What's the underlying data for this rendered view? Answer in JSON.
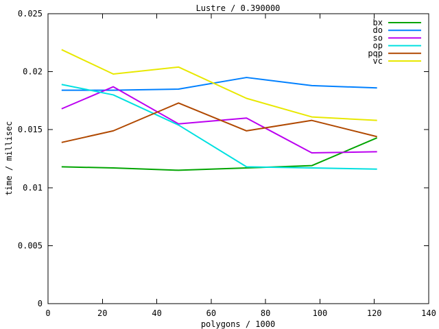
{
  "chart_data": {
    "type": "line",
    "title": "Lustre / 0.390000",
    "xlabel": "polygons / 1000",
    "ylabel": "time / millisec",
    "xlim": [
      0,
      140
    ],
    "ylim": [
      0,
      0.025
    ],
    "xticks": [
      0,
      20,
      40,
      60,
      80,
      100,
      120,
      140
    ],
    "xtick_labels": [
      "0",
      "20",
      "40",
      "60",
      "80",
      "100",
      "120",
      "140"
    ],
    "yticks": [
      0,
      0.005,
      0.01,
      0.015,
      0.02,
      0.025
    ],
    "ytick_labels": [
      "0",
      "0.005",
      "0.01",
      "0.015",
      "0.02",
      "0.025"
    ],
    "grid": false,
    "legend_position": "top-right",
    "background_color": "#ffffff",
    "axis_color": "#000000",
    "x": [
      5,
      24,
      48,
      73,
      97,
      121
    ],
    "series": [
      {
        "name": "bx",
        "color": "#00a400",
        "values": [
          0.0118,
          0.0117,
          0.0115,
          0.0117,
          0.0119,
          0.0143
        ]
      },
      {
        "name": "do",
        "color": "#0080ff",
        "values": [
          0.0184,
          0.0184,
          0.0185,
          0.0195,
          0.0188,
          0.0186
        ]
      },
      {
        "name": "so",
        "color": "#bb00f0",
        "values": [
          0.0168,
          0.0187,
          0.0155,
          0.016,
          0.013,
          0.0131
        ]
      },
      {
        "name": "op",
        "color": "#00e0e0",
        "values": [
          0.0189,
          0.018,
          0.0154,
          0.0118,
          0.0117,
          0.0116
        ]
      },
      {
        "name": "pqp",
        "color": "#b04800",
        "values": [
          0.0139,
          0.0149,
          0.0173,
          0.0149,
          0.0158,
          0.0144
        ]
      },
      {
        "name": "vc",
        "color": "#e8e800",
        "values": [
          0.0219,
          0.0198,
          0.0204,
          0.0177,
          0.0161,
          0.0158
        ]
      }
    ]
  }
}
